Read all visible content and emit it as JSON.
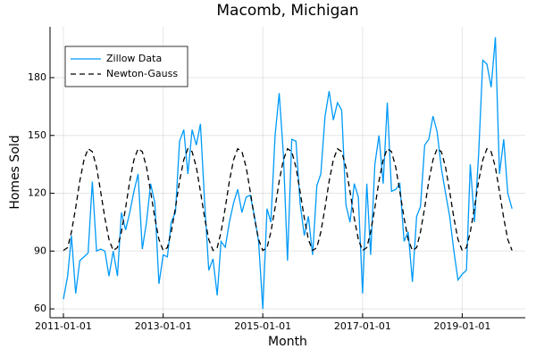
{
  "chart_data": {
    "type": "line",
    "title": "Macomb, Michigan",
    "x_label": "Month",
    "y_label": "Homes Sold",
    "x": [
      "2011-01-01",
      "2011-02-01",
      "2011-03-01",
      "2011-04-01",
      "2011-05-01",
      "2011-06-01",
      "2011-07-01",
      "2011-08-01",
      "2011-09-01",
      "2011-10-01",
      "2011-11-01",
      "2011-12-01",
      "2012-01-01",
      "2012-02-01",
      "2012-03-01",
      "2012-04-01",
      "2012-05-01",
      "2012-06-01",
      "2012-07-01",
      "2012-08-01",
      "2012-09-01",
      "2012-10-01",
      "2012-11-01",
      "2012-12-01",
      "2013-01-01",
      "2013-02-01",
      "2013-03-01",
      "2013-04-01",
      "2013-05-01",
      "2013-06-01",
      "2013-07-01",
      "2013-08-01",
      "2013-09-01",
      "2013-10-01",
      "2013-11-01",
      "2013-12-01",
      "2014-01-01",
      "2014-02-01",
      "2014-03-01",
      "2014-04-01",
      "2014-05-01",
      "2014-06-01",
      "2014-07-01",
      "2014-08-01",
      "2014-09-01",
      "2014-10-01",
      "2014-11-01",
      "2014-12-01",
      "2015-01-01",
      "2015-02-01",
      "2015-03-01",
      "2015-04-01",
      "2015-05-01",
      "2015-06-01",
      "2015-07-01",
      "2015-08-01",
      "2015-09-01",
      "2015-10-01",
      "2015-11-01",
      "2015-12-01",
      "2016-01-01",
      "2016-02-01",
      "2016-03-01",
      "2016-04-01",
      "2016-05-01",
      "2016-06-01",
      "2016-07-01",
      "2016-08-01",
      "2016-09-01",
      "2016-10-01",
      "2016-11-01",
      "2016-12-01",
      "2017-01-01",
      "2017-02-01",
      "2017-03-01",
      "2017-04-01",
      "2017-05-01",
      "2017-06-01",
      "2017-07-01",
      "2017-08-01",
      "2017-09-01",
      "2017-10-01",
      "2017-11-01",
      "2017-12-01",
      "2018-01-01",
      "2018-02-01",
      "2018-03-01",
      "2018-04-01",
      "2018-05-01",
      "2018-06-01",
      "2018-07-01",
      "2018-08-01",
      "2018-09-01",
      "2018-10-01",
      "2018-11-01",
      "2018-12-01",
      "2019-01-01",
      "2019-02-01",
      "2019-03-01",
      "2019-04-01",
      "2019-05-01",
      "2019-06-01",
      "2019-07-01",
      "2019-08-01",
      "2019-09-01",
      "2019-10-01",
      "2019-11-01",
      "2019-12-01",
      "2020-01-01"
    ],
    "series": [
      {
        "name": "Zillow Data",
        "color": "#009af9",
        "style": "solid",
        "values": [
          65,
          77,
          98,
          68,
          85,
          87,
          89,
          126,
          90,
          91,
          90,
          77,
          90,
          77,
          110,
          101,
          110,
          121,
          130,
          91,
          105,
          125,
          115,
          73,
          88,
          87,
          105,
          110,
          147,
          153,
          130,
          153,
          145,
          156,
          115,
          80,
          86,
          67,
          95,
          92,
          105,
          115,
          122,
          110,
          118,
          119,
          108,
          95,
          60,
          112,
          105,
          150,
          172,
          140,
          85,
          148,
          147,
          115,
          98,
          108,
          88,
          124,
          130,
          160,
          173,
          158,
          167,
          163,
          114,
          105,
          125,
          118,
          68,
          125,
          88,
          135,
          150,
          125,
          167,
          121,
          122,
          125,
          95,
          100,
          74,
          108,
          113,
          145,
          148,
          160,
          152,
          133,
          120,
          108,
          90,
          75,
          78,
          80,
          135,
          105,
          140,
          189,
          187,
          175,
          201,
          130,
          148,
          120,
          112
        ]
      },
      {
        "name": "Newton-Gauss",
        "color": "#000000",
        "style": "dashed",
        "values": [
          90.3,
          91.8,
          99.9,
          112.5,
          126.3,
          137.4,
          143.1,
          141.6,
          133.5,
          120.9,
          107.1,
          96.0,
          90.3,
          91.8,
          99.9,
          112.5,
          126.3,
          137.4,
          143.1,
          141.6,
          133.5,
          120.9,
          107.1,
          96.0,
          90.3,
          91.8,
          99.9,
          112.5,
          126.3,
          137.4,
          143.1,
          141.6,
          133.5,
          120.9,
          107.1,
          96.0,
          90.3,
          91.8,
          99.9,
          112.5,
          126.3,
          137.4,
          143.1,
          141.6,
          133.5,
          120.9,
          107.1,
          96.0,
          90.3,
          91.8,
          99.9,
          112.5,
          126.3,
          137.4,
          143.1,
          141.6,
          133.5,
          120.9,
          107.1,
          96.0,
          90.3,
          91.8,
          99.9,
          112.5,
          126.3,
          137.4,
          143.1,
          141.6,
          133.5,
          120.9,
          107.1,
          96.0,
          90.3,
          91.8,
          99.9,
          112.5,
          126.3,
          137.4,
          143.1,
          141.6,
          133.5,
          120.9,
          107.1,
          96.0,
          90.3,
          91.8,
          99.9,
          112.5,
          126.3,
          137.4,
          143.1,
          141.6,
          133.5,
          120.9,
          107.1,
          96.0,
          90.3,
          91.8,
          99.9,
          112.5,
          126.3,
          137.4,
          143.1,
          141.6,
          133.5,
          120.9,
          107.1,
          96.0,
          90.3
        ]
      }
    ],
    "xlim": [
      "2010-09-25",
      "2020-04-07"
    ],
    "xticks": [
      "2011-01-01",
      "2013-01-01",
      "2015-01-01",
      "2017-01-01",
      "2019-01-01"
    ],
    "ylim": [
      55.4,
      206.4
    ],
    "yticks": [
      60,
      90,
      120,
      150,
      180
    ],
    "grid": true,
    "legend": "top-left"
  }
}
